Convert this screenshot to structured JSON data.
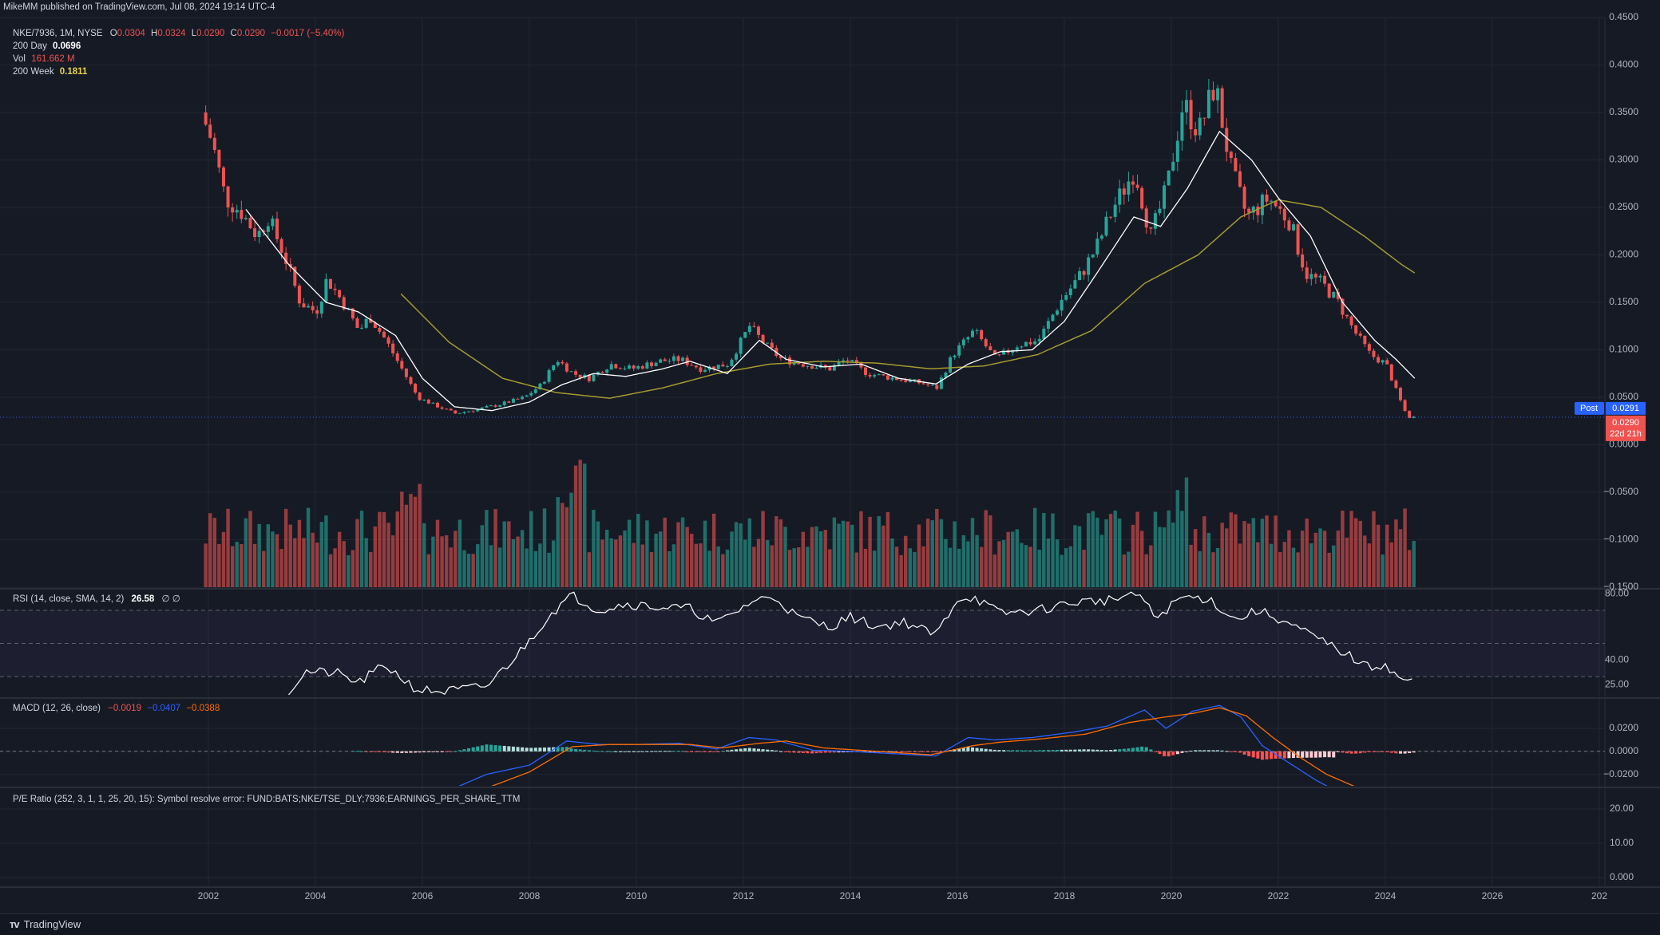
{
  "published": "MikeMM published on TradingView.com, Jul 08, 2024 19:14 UTC-4",
  "colors": {
    "bg": "#161a25",
    "up": "#26a69a",
    "down": "#ef5350",
    "grid": "#222631",
    "ma200day": "#ffffff",
    "ma200week": "#a59a2f",
    "macd": "#2962ff",
    "signal": "#ff6d00",
    "rsi": "#ffffff",
    "text": "#d1d4dc"
  },
  "main_legend": {
    "title": "NKE/7936, 1M, NYSE",
    "o_label": "O",
    "o": "0.0304",
    "h_label": "H",
    "h": "0.0324",
    "l_label": "L",
    "l": "0.0290",
    "c_label": "C",
    "c": "0.0290",
    "chg": "−0.0017 (−5.40%)",
    "ma200day_label": "200 Day",
    "ma200day": "0.0696",
    "vol_label": "Vol",
    "vol": "161.662 M",
    "ma200week_label": "200 Week",
    "ma200week": "0.1811"
  },
  "rsi_legend": {
    "label": "RSI (14, close, SMA, 14, 2)",
    "value": "26.58",
    "extra": "∅  ∅"
  },
  "macd_legend": {
    "label": "MACD (12, 26, close)",
    "hist": "−0.0019",
    "macd": "−0.0407",
    "signal": "−0.0388"
  },
  "pe_legend": {
    "label": "P/E Ratio (252, 3, 1, 1, 25, 20, 15): Symbol resolve error: FUND:BATS;NKE/TSE_DLY;7936;EARNINGS_PER_SHARE_TTM"
  },
  "price_badges": {
    "post_label": "Post",
    "post_value": "0.0291",
    "last_value": "0.0290",
    "countdown": "22d 21h"
  },
  "main_axis_ticks": [
    "0.4500",
    "0.4000",
    "0.3500",
    "0.3000",
    "0.2500",
    "0.2000",
    "0.1500",
    "0.1000",
    "0.0500",
    "0.0000",
    "−0.0500",
    "−0.1000",
    "−0.1500"
  ],
  "rsi_axis_ticks": [
    "80.00",
    "40.00",
    "25.00"
  ],
  "macd_axis_ticks": [
    "0.0200",
    "0.0000",
    "−0.0200"
  ],
  "pe_axis_ticks": [
    "20.00",
    "10.00",
    "0.000"
  ],
  "x_ticks": [
    "2002",
    "2004",
    "2006",
    "2008",
    "2010",
    "2012",
    "2014",
    "2016",
    "2018",
    "2020",
    "2022",
    "2024",
    "2026",
    "202"
  ],
  "brand": "TradingView",
  "chart_data": {
    "type": "candlestick",
    "interval": "1M",
    "x_range": [
      "2001-12",
      "2024-07"
    ],
    "price_ylim": [
      -0.15,
      0.45
    ],
    "price_anchors": [
      [
        2001.95,
        0.35
      ],
      [
        2002.15,
        0.32
      ],
      [
        2002.4,
        0.26
      ],
      [
        2002.7,
        0.245
      ],
      [
        2003.0,
        0.22
      ],
      [
        2003.2,
        0.24
      ],
      [
        2003.5,
        0.2
      ],
      [
        2003.8,
        0.15
      ],
      [
        2004.1,
        0.14
      ],
      [
        2004.3,
        0.175
      ],
      [
        2004.6,
        0.15
      ],
      [
        2004.9,
        0.12
      ],
      [
        2005.1,
        0.135
      ],
      [
        2005.4,
        0.11
      ],
      [
        2005.7,
        0.08
      ],
      [
        2006.0,
        0.05
      ],
      [
        2006.3,
        0.042
      ],
      [
        2006.7,
        0.033
      ],
      [
        2007.0,
        0.036
      ],
      [
        2007.5,
        0.042
      ],
      [
        2008.0,
        0.05
      ],
      [
        2008.3,
        0.063
      ],
      [
        2008.6,
        0.09
      ],
      [
        2008.9,
        0.075
      ],
      [
        2009.2,
        0.07
      ],
      [
        2009.6,
        0.085
      ],
      [
        2010.0,
        0.08
      ],
      [
        2010.5,
        0.088
      ],
      [
        2010.9,
        0.09
      ],
      [
        2011.3,
        0.08
      ],
      [
        2011.8,
        0.085
      ],
      [
        2012.2,
        0.125
      ],
      [
        2012.5,
        0.105
      ],
      [
        2012.8,
        0.09
      ],
      [
        2013.2,
        0.085
      ],
      [
        2013.7,
        0.08
      ],
      [
        2014.0,
        0.09
      ],
      [
        2014.4,
        0.075
      ],
      [
        2014.9,
        0.07
      ],
      [
        2015.4,
        0.065
      ],
      [
        2015.7,
        0.06
      ],
      [
        2016.0,
        0.095
      ],
      [
        2016.4,
        0.12
      ],
      [
        2016.8,
        0.09
      ],
      [
        2017.2,
        0.105
      ],
      [
        2017.6,
        0.11
      ],
      [
        2018.0,
        0.15
      ],
      [
        2018.4,
        0.18
      ],
      [
        2018.7,
        0.21
      ],
      [
        2019.0,
        0.25
      ],
      [
        2019.4,
        0.29
      ],
      [
        2019.7,
        0.22
      ],
      [
        2020.0,
        0.27
      ],
      [
        2020.3,
        0.36
      ],
      [
        2020.6,
        0.33
      ],
      [
        2020.9,
        0.38
      ],
      [
        2021.2,
        0.29
      ],
      [
        2021.5,
        0.24
      ],
      [
        2021.9,
        0.26
      ],
      [
        2022.3,
        0.235
      ],
      [
        2022.6,
        0.18
      ],
      [
        2022.9,
        0.17
      ],
      [
        2023.2,
        0.15
      ],
      [
        2023.5,
        0.12
      ],
      [
        2023.8,
        0.095
      ],
      [
        2024.1,
        0.085
      ],
      [
        2024.3,
        0.055
      ],
      [
        2024.5,
        0.029
      ]
    ],
    "ma200day_anchors": [
      [
        2002.7,
        0.248
      ],
      [
        2003.5,
        0.19
      ],
      [
        2004.2,
        0.15
      ],
      [
        2004.8,
        0.14
      ],
      [
        2005.5,
        0.115
      ],
      [
        2006.0,
        0.07
      ],
      [
        2006.6,
        0.04
      ],
      [
        2007.3,
        0.036
      ],
      [
        2008.0,
        0.045
      ],
      [
        2008.6,
        0.063
      ],
      [
        2009.2,
        0.075
      ],
      [
        2009.8,
        0.072
      ],
      [
        2010.5,
        0.08
      ],
      [
        2011.0,
        0.088
      ],
      [
        2011.7,
        0.075
      ],
      [
        2012.3,
        0.11
      ],
      [
        2012.8,
        0.09
      ],
      [
        2013.5,
        0.082
      ],
      [
        2014.2,
        0.085
      ],
      [
        2014.9,
        0.07
      ],
      [
        2015.6,
        0.064
      ],
      [
        2016.2,
        0.085
      ],
      [
        2016.8,
        0.098
      ],
      [
        2017.4,
        0.1
      ],
      [
        2018.0,
        0.13
      ],
      [
        2018.6,
        0.18
      ],
      [
        2019.3,
        0.24
      ],
      [
        2019.8,
        0.23
      ],
      [
        2020.3,
        0.27
      ],
      [
        2020.9,
        0.33
      ],
      [
        2021.5,
        0.3
      ],
      [
        2022.0,
        0.26
      ],
      [
        2022.6,
        0.22
      ],
      [
        2023.2,
        0.15
      ],
      [
        2023.8,
        0.11
      ],
      [
        2024.2,
        0.09
      ],
      [
        2024.55,
        0.07
      ]
    ],
    "ma200week_anchors": [
      [
        2005.6,
        0.159
      ],
      [
        2006.5,
        0.108
      ],
      [
        2007.5,
        0.07
      ],
      [
        2008.5,
        0.055
      ],
      [
        2009.5,
        0.049
      ],
      [
        2010.5,
        0.06
      ],
      [
        2011.5,
        0.075
      ],
      [
        2012.5,
        0.085
      ],
      [
        2013.5,
        0.088
      ],
      [
        2014.5,
        0.086
      ],
      [
        2015.5,
        0.08
      ],
      [
        2016.5,
        0.083
      ],
      [
        2017.5,
        0.095
      ],
      [
        2018.5,
        0.12
      ],
      [
        2019.5,
        0.17
      ],
      [
        2020.5,
        0.2
      ],
      [
        2021.3,
        0.24
      ],
      [
        2022.0,
        0.258
      ],
      [
        2022.8,
        0.25
      ],
      [
        2023.6,
        0.22
      ],
      [
        2024.3,
        0.19
      ],
      [
        2024.55,
        0.181
      ]
    ],
    "rsi_ylim": [
      18,
      82
    ],
    "rsi_anchors": [
      [
        2003.5,
        20
      ],
      [
        2003.8,
        33
      ],
      [
        2004.4,
        32
      ],
      [
        2004.8,
        26
      ],
      [
        2005.3,
        37
      ],
      [
        2005.9,
        22
      ],
      [
        2006.4,
        21
      ],
      [
        2007.2,
        24
      ],
      [
        2007.8,
        44
      ],
      [
        2008.4,
        68
      ],
      [
        2008.8,
        79
      ],
      [
        2009.3,
        70
      ],
      [
        2009.8,
        74
      ],
      [
        2010.4,
        72
      ],
      [
        2011.0,
        71
      ],
      [
        2011.5,
        62
      ],
      [
        2012.2,
        76
      ],
      [
        2012.6,
        78
      ],
      [
        2013.0,
        66
      ],
      [
        2013.6,
        60
      ],
      [
        2014.0,
        66
      ],
      [
        2014.5,
        60
      ],
      [
        2015.0,
        63
      ],
      [
        2015.6,
        55
      ],
      [
        2016.0,
        77
      ],
      [
        2016.3,
        78
      ],
      [
        2016.8,
        68
      ],
      [
        2017.5,
        70
      ],
      [
        2018.2,
        75
      ],
      [
        2018.8,
        76
      ],
      [
        2019.4,
        80
      ],
      [
        2019.7,
        65
      ],
      [
        2020.2,
        78
      ],
      [
        2020.7,
        77
      ],
      [
        2021.2,
        64
      ],
      [
        2021.6,
        70
      ],
      [
        2022.0,
        65
      ],
      [
        2022.6,
        55
      ],
      [
        2023.2,
        45
      ],
      [
        2023.7,
        35
      ],
      [
        2024.0,
        38
      ],
      [
        2024.2,
        30
      ],
      [
        2024.55,
        26.6
      ]
    ],
    "macd_ylim": [
      -0.03,
      0.045
    ],
    "macd_anchors": [
      [
        2004.7,
        -0.031
      ],
      [
        2005.6,
        -0.035
      ],
      [
        2006.6,
        -0.032
      ],
      [
        2007.2,
        -0.02
      ],
      [
        2008.0,
        -0.012
      ],
      [
        2008.7,
        0.009
      ],
      [
        2009.3,
        0.006
      ],
      [
        2010.0,
        0.006
      ],
      [
        2010.8,
        0.007
      ],
      [
        2011.5,
        0.002
      ],
      [
        2012.1,
        0.012
      ],
      [
        2012.6,
        0.01
      ],
      [
        2013.3,
        0.001
      ],
      [
        2014.0,
        0.0
      ],
      [
        2014.8,
        -0.002
      ],
      [
        2015.6,
        -0.004
      ],
      [
        2016.2,
        0.012
      ],
      [
        2016.7,
        0.01
      ],
      [
        2017.4,
        0.012
      ],
      [
        2018.2,
        0.017
      ],
      [
        2018.8,
        0.022
      ],
      [
        2019.5,
        0.036
      ],
      [
        2019.9,
        0.02
      ],
      [
        2020.4,
        0.035
      ],
      [
        2020.9,
        0.04
      ],
      [
        2021.3,
        0.03
      ],
      [
        2021.7,
        0.005
      ],
      [
        2022.2,
        -0.01
      ],
      [
        2022.7,
        -0.025
      ],
      [
        2023.1,
        -0.035
      ]
    ],
    "signal_anchors": [
      [
        2007.2,
        -0.032
      ],
      [
        2008.0,
        -0.018
      ],
      [
        2008.8,
        0.004
      ],
      [
        2009.5,
        0.006
      ],
      [
        2010.2,
        0.006
      ],
      [
        2011.0,
        0.006
      ],
      [
        2011.6,
        0.003
      ],
      [
        2012.3,
        0.007
      ],
      [
        2012.8,
        0.009
      ],
      [
        2013.5,
        0.003
      ],
      [
        2014.5,
        0.0
      ],
      [
        2015.5,
        -0.003
      ],
      [
        2016.3,
        0.005
      ],
      [
        2016.8,
        0.008
      ],
      [
        2017.6,
        0.011
      ],
      [
        2018.4,
        0.015
      ],
      [
        2019.2,
        0.025
      ],
      [
        2019.9,
        0.03
      ],
      [
        2020.4,
        0.033
      ],
      [
        2020.9,
        0.038
      ],
      [
        2021.4,
        0.031
      ],
      [
        2021.9,
        0.012
      ],
      [
        2022.4,
        -0.005
      ],
      [
        2022.9,
        -0.02
      ],
      [
        2023.4,
        -0.03
      ],
      [
        2023.6,
        -0.034
      ]
    ]
  }
}
